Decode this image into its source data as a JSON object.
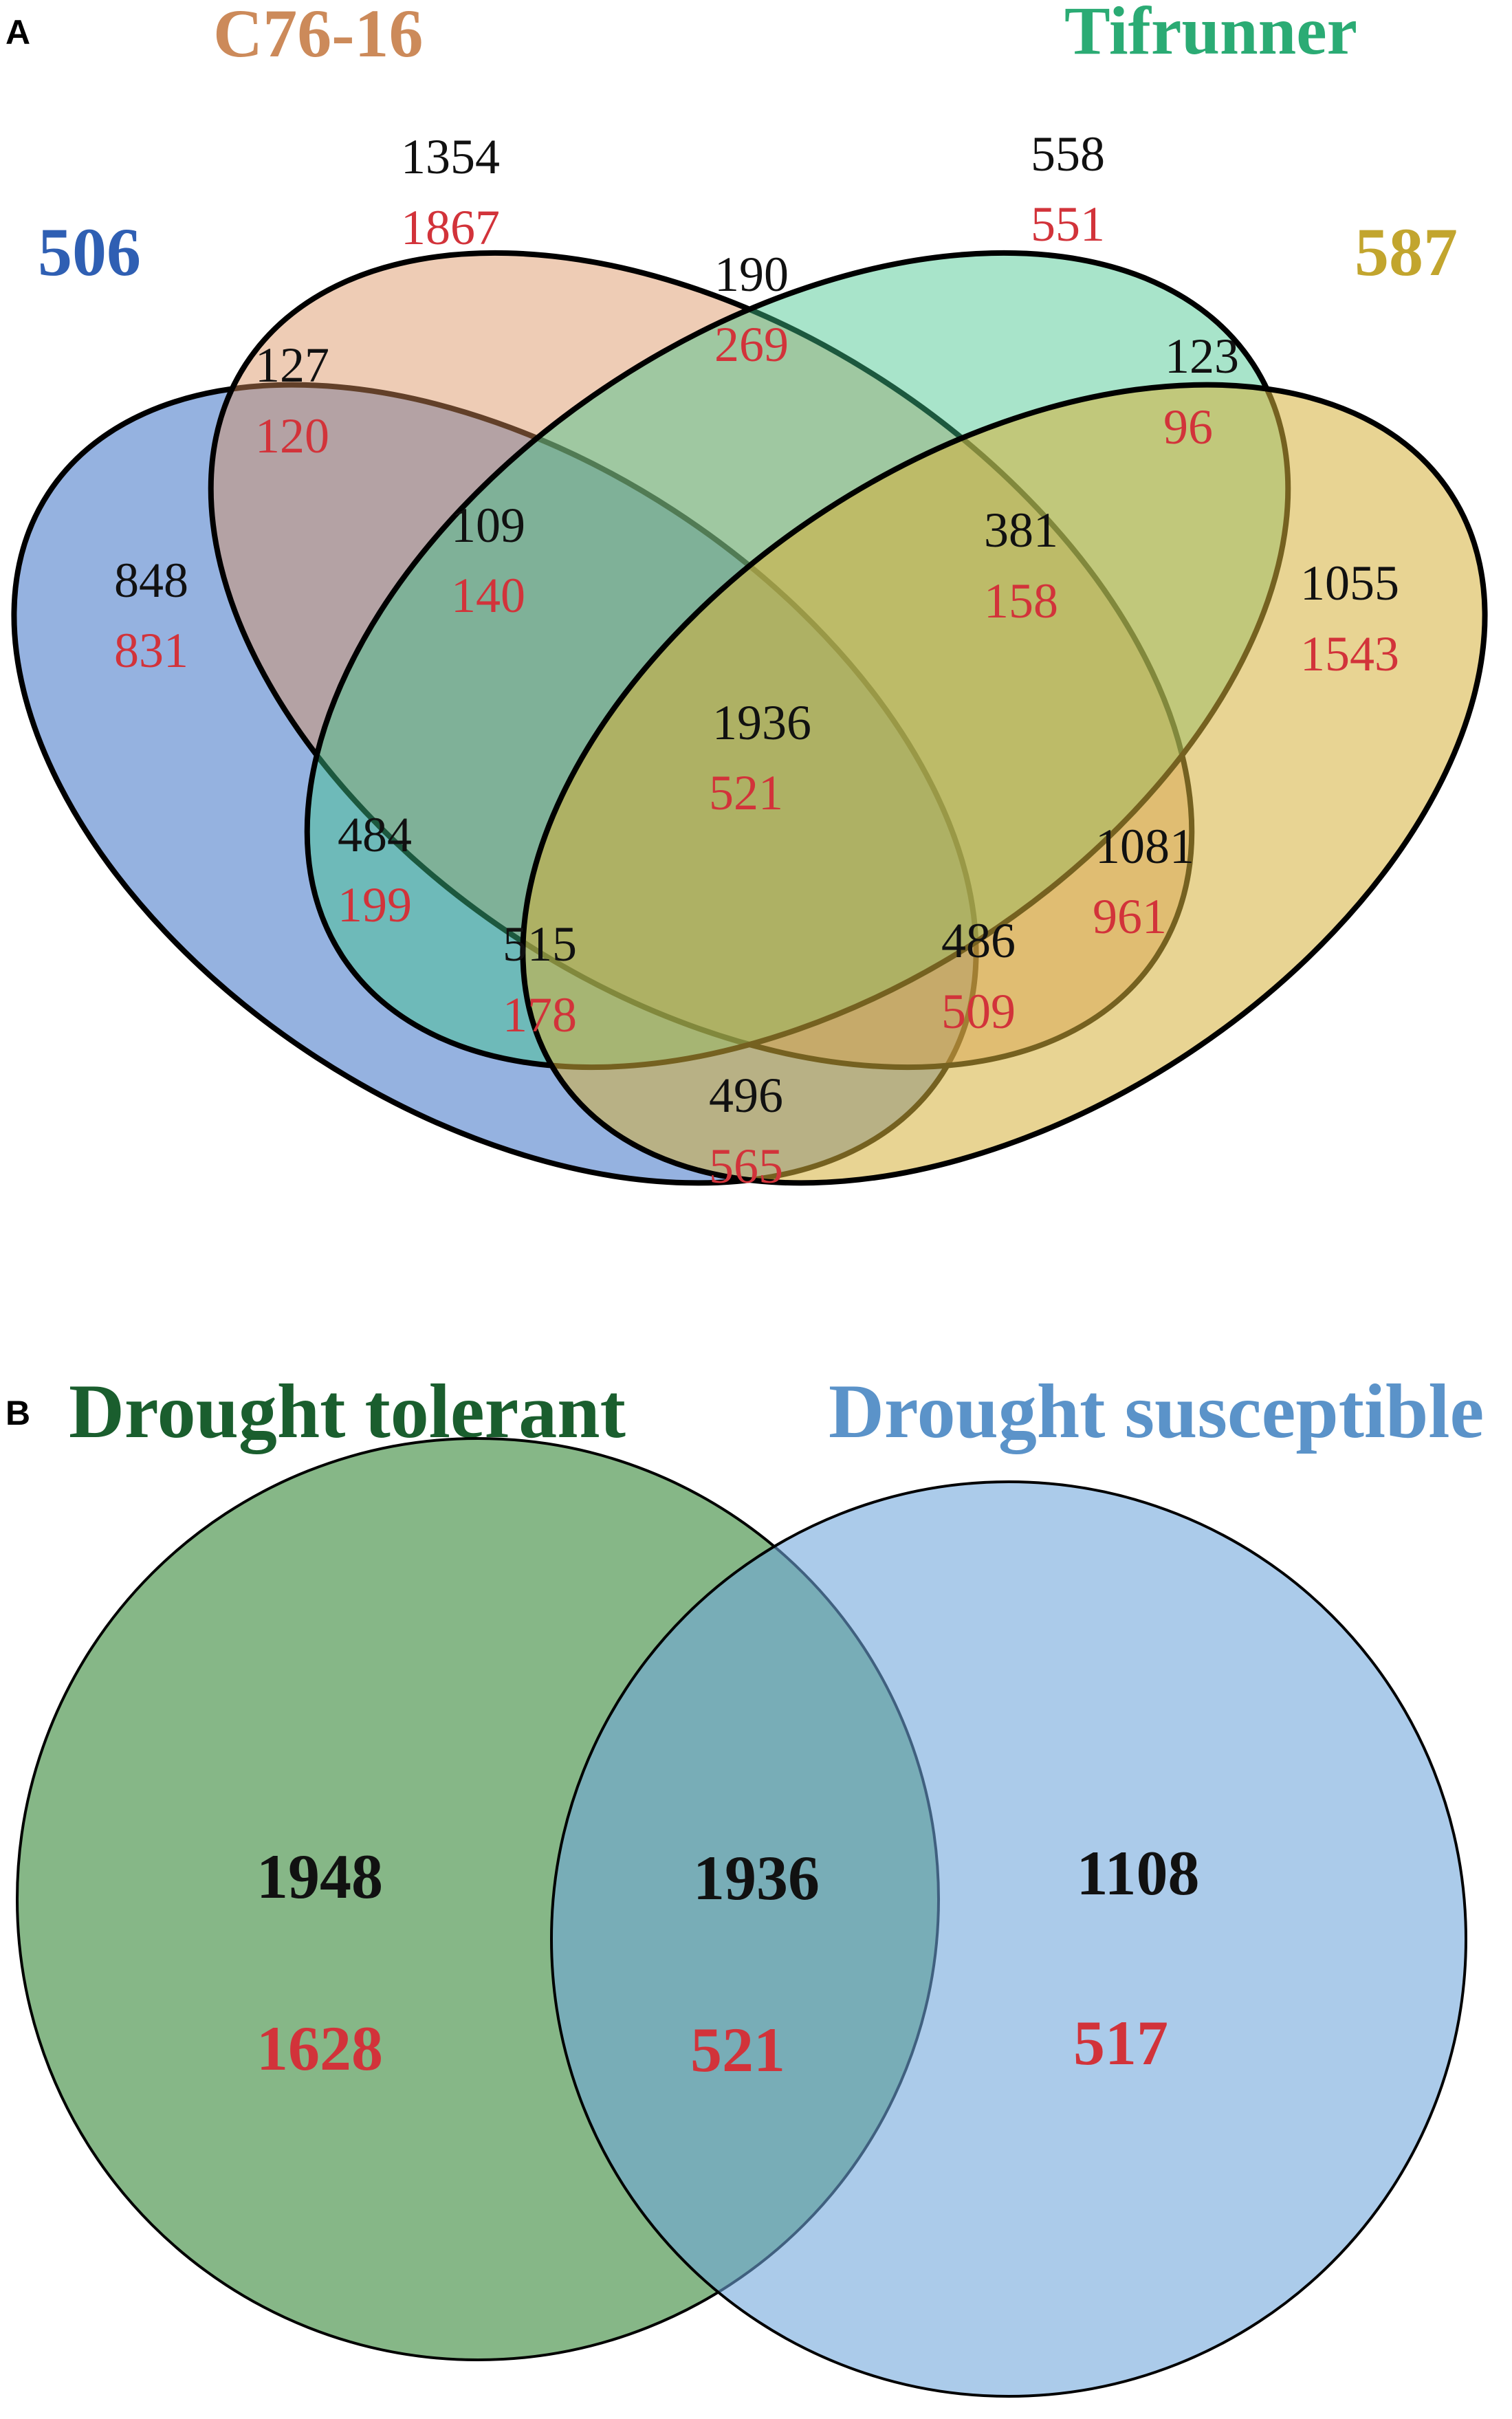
{
  "colors": {
    "set_506": "#2f5fb3",
    "set_c76": "#cc8a5a",
    "set_tifrunner": "#2bab74",
    "set_587": "#c2a52e",
    "drought_tolerant": "#1a5e2e",
    "drought_susceptible": "#5b93c9",
    "count_black": "#111111",
    "count_red": "#d2333a",
    "fill_506": "#3e72c7",
    "fill_c76": "#d98f5c",
    "fill_tifrunner": "#3fc48a",
    "fill_587": "#d6b13a",
    "fill_tolerant": "#3b8a3d",
    "fill_susceptible": "#6ea6db"
  },
  "panel_a": {
    "letter": "A",
    "sets": {
      "s506": "506",
      "c76": "C76-16",
      "tifrunner": "Tifrunner",
      "s587": "587"
    },
    "regions": {
      "c76_only": {
        "black": "1354",
        "red": "1867"
      },
      "tif_only": {
        "black": "558",
        "red": "551"
      },
      "c76_tif": {
        "black": "190",
        "red": "269"
      },
      "s506_c76": {
        "black": "127",
        "red": "120"
      },
      "tif_587": {
        "black": "123",
        "red": "96"
      },
      "s506_c76_tif": {
        "black": "109",
        "red": "140"
      },
      "c76_tif_587": {
        "black": "381",
        "red": "158"
      },
      "s506_only": {
        "black": "848",
        "red": "831"
      },
      "s587_only": {
        "black": "1055",
        "red": "1543"
      },
      "all_four": {
        "black": "1936",
        "red": "521"
      },
      "s506_tif": {
        "black": "484",
        "red": "199"
      },
      "c76_587": {
        "black": "1081",
        "red": "961"
      },
      "s506_tif_587": {
        "black": "515",
        "red": "178"
      },
      "s506_c76_587": {
        "black": "486",
        "red": "509"
      },
      "s506_587": {
        "black": "496",
        "red": "565"
      }
    }
  },
  "panel_b": {
    "letter": "B",
    "sets": {
      "tolerant": "Drought tolerant",
      "susceptible": "Drought susceptible"
    },
    "regions": {
      "tolerant_only": {
        "black": "1948",
        "red": "1628"
      },
      "both": {
        "black": "1936",
        "red": "521"
      },
      "susceptible_only": {
        "black": "1108",
        "red": "517"
      }
    }
  }
}
